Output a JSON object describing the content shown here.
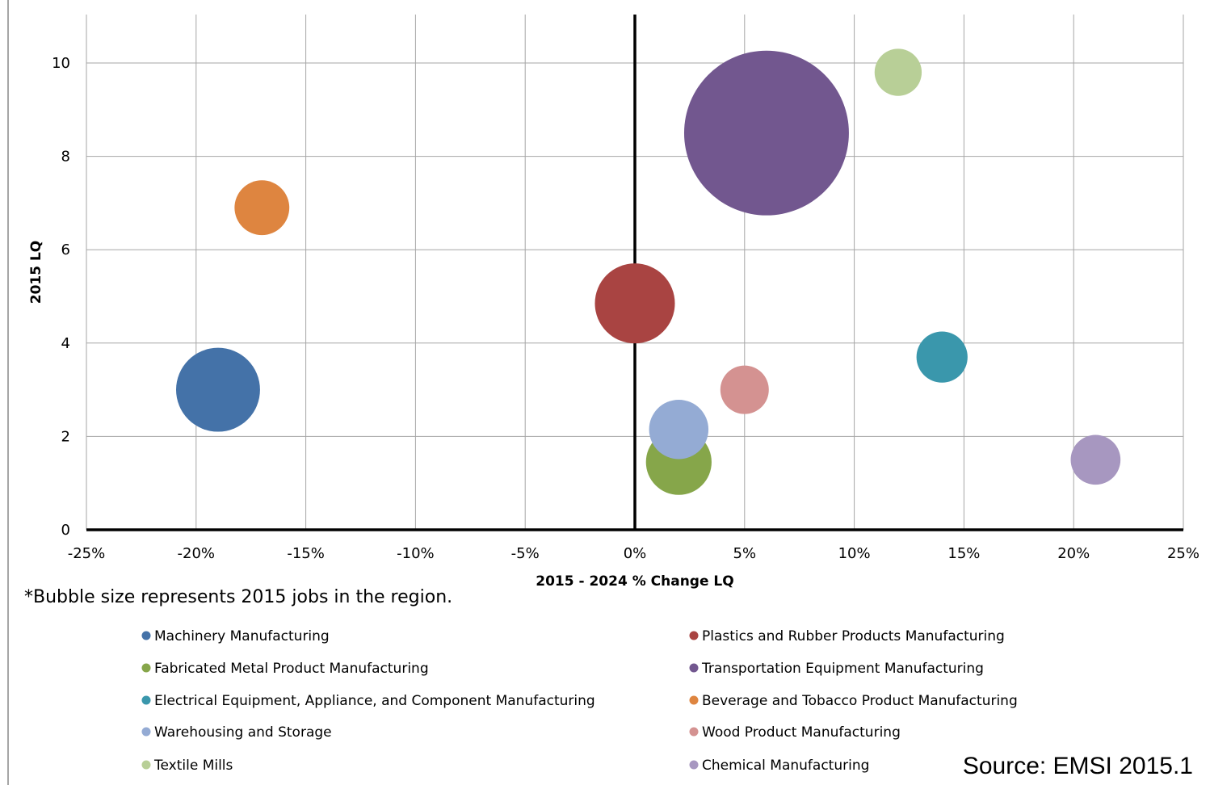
{
  "chart_data": {
    "type": "scatter",
    "subtype": "bubble",
    "xlabel": "2015 - 2024 % Change LQ",
    "ylabel": "2015 LQ",
    "xlim": [
      -25,
      25
    ],
    "ylim": [
      0,
      11
    ],
    "x_ticks": [
      "-25%",
      "-20%",
      "-15%",
      "-10%",
      "-5%",
      "0%",
      "5%",
      "10%",
      "15%",
      "20%",
      "25%"
    ],
    "y_ticks": [
      "0",
      "2",
      "4",
      "6",
      "8",
      "10"
    ],
    "grid": true,
    "legend_position": "bottom",
    "note": "*Bubble size represents 2015 jobs in the region.",
    "source": "Source: EMSI 2015.1",
    "series": [
      {
        "name": "Machinery Manufacturing",
        "x": -19,
        "y": 3.0,
        "size": 2700,
        "color": "#4472a8"
      },
      {
        "name": "Plastics and Rubber Products Manufacturing",
        "x": 0,
        "y": 4.85,
        "size": 2450,
        "color": "#a94442"
      },
      {
        "name": "Fabricated Metal Product Manufacturing",
        "x": 2,
        "y": 1.45,
        "size": 1650,
        "color": "#86a64a"
      },
      {
        "name": "Transportation Equipment Manufacturing",
        "x": 6,
        "y": 8.5,
        "size": 10400,
        "color": "#72578f"
      },
      {
        "name": "Electrical Equipment, Appliance, and Component Manufacturing",
        "x": 14,
        "y": 3.7,
        "size": 1000,
        "color": "#3a97ac"
      },
      {
        "name": "Beverage and Tobacco Product Manufacturing",
        "x": -17,
        "y": 6.9,
        "size": 1150,
        "color": "#de8540"
      },
      {
        "name": "Warehousing and Storage",
        "x": 2,
        "y": 2.15,
        "size": 1350,
        "color": "#94abd4"
      },
      {
        "name": "Wood Product Manufacturing",
        "x": 5,
        "y": 3.0,
        "size": 900,
        "color": "#d49291"
      },
      {
        "name": "Textile Mills",
        "x": 12,
        "y": 9.8,
        "size": 850,
        "color": "#b8cf97"
      },
      {
        "name": "Chemical Manufacturing",
        "x": 21,
        "y": 1.5,
        "size": 950,
        "color": "#a797c0"
      }
    ]
  }
}
